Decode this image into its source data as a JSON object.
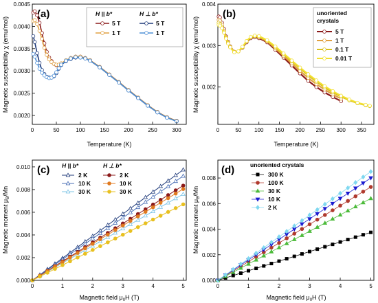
{
  "chart_data": [
    {
      "panel": "(a)",
      "type": "scatter",
      "xlabel": "Temperature (K)",
      "ylabel": "Magnetic susceptibility χ (emu/mol)",
      "xlim": [
        0,
        320
      ],
      "ylim": [
        0.0018,
        0.0045
      ],
      "xticks": [
        "0",
        "50",
        "100",
        "150",
        "200",
        "250",
        "300"
      ],
      "yticks": [
        "0.0020",
        "0.0025",
        "0.0030",
        "0.0035",
        "0.0040",
        "0.0045"
      ],
      "legend_headers": [
        "H || b*",
        "H ⊥ b*"
      ],
      "series": [
        {
          "name": "5 T",
          "color": "#8b1a1a",
          "x": [
            2,
            5,
            10,
            15,
            20,
            25,
            30,
            35,
            40,
            45,
            50,
            55,
            60,
            70,
            80,
            90,
            100,
            110,
            120,
            140,
            160,
            180,
            200,
            220,
            240,
            260,
            280,
            300
          ],
          "y": [
            0.00431,
            0.00434,
            0.00425,
            0.00408,
            0.00385,
            0.00362,
            0.00343,
            0.0033,
            0.00322,
            0.00316,
            0.00313,
            0.00313,
            0.00316,
            0.00323,
            0.00329,
            0.00332,
            0.00332,
            0.00329,
            0.00324,
            0.00309,
            0.00292,
            0.00275,
            0.00257,
            0.0024,
            0.00223,
            0.00208,
            0.00196,
            0.00188
          ]
        },
        {
          "name": "1 T",
          "color": "#e0a040",
          "x": [
            2,
            5,
            10,
            15,
            20,
            25,
            30,
            35,
            40,
            45,
            50,
            55,
            60,
            70,
            80,
            90,
            100,
            110,
            120,
            140,
            160,
            180,
            200,
            220,
            240,
            260,
            280,
            300
          ],
          "y": [
            0.00412,
            0.00414,
            0.00405,
            0.0039,
            0.00372,
            0.00352,
            0.00336,
            0.00326,
            0.0032,
            0.00316,
            0.00314,
            0.00314,
            0.00317,
            0.00324,
            0.00329,
            0.00332,
            0.00332,
            0.00329,
            0.00324,
            0.00309,
            0.00292,
            0.00275,
            0.00257,
            0.0024,
            0.00223,
            0.00208,
            0.00196,
            0.00188
          ]
        },
        {
          "name": "5 T",
          "color": "#1f3a7a",
          "x": [
            2,
            5,
            10,
            15,
            20,
            25,
            30,
            35,
            40,
            45,
            50,
            55,
            60,
            70,
            80,
            90,
            100,
            110,
            120,
            140,
            160,
            180,
            200,
            220,
            240,
            260,
            280,
            300
          ],
          "y": [
            0.00378,
            0.00365,
            0.0034,
            0.00318,
            0.00302,
            0.00293,
            0.00287,
            0.00285,
            0.00285,
            0.00288,
            0.00295,
            0.00305,
            0.00313,
            0.00322,
            0.00327,
            0.0033,
            0.0033,
            0.00328,
            0.00323,
            0.00308,
            0.00291,
            0.00274,
            0.00256,
            0.00239,
            0.00222,
            0.00207,
            0.00195,
            0.00187
          ]
        },
        {
          "name": "1 T",
          "color": "#4d8fd6",
          "x": [
            2,
            5,
            10,
            15,
            20,
            25,
            30,
            35,
            40,
            45,
            50,
            55,
            60,
            70,
            80,
            90,
            100,
            110,
            120,
            140,
            160,
            180,
            200,
            220,
            240,
            260,
            280,
            300
          ],
          "y": [
            0.00338,
            0.00332,
            0.00318,
            0.00305,
            0.00296,
            0.0029,
            0.00286,
            0.00284,
            0.00285,
            0.00289,
            0.00297,
            0.00306,
            0.00314,
            0.00323,
            0.00328,
            0.00331,
            0.0033,
            0.00328,
            0.00323,
            0.00308,
            0.00291,
            0.00274,
            0.00256,
            0.00239,
            0.00222,
            0.00207,
            0.00195,
            0.00187
          ]
        }
      ]
    },
    {
      "panel": "(b)",
      "type": "scatter",
      "xlabel": "Temperature (K)",
      "ylabel": "Magnetic susceptibility χ (emu/mol)",
      "xlim": [
        0,
        380
      ],
      "ylim": [
        0.0011,
        0.004
      ],
      "xticks": [
        "0",
        "50",
        "100",
        "150",
        "200",
        "250",
        "300",
        "350"
      ],
      "yticks": [
        "0.002",
        "0.003",
        "0.004"
      ],
      "legend_title": "unoriented crystals",
      "series": [
        {
          "name": "5 T",
          "color": "#8b1a1a",
          "x": [
            2,
            5,
            10,
            15,
            20,
            25,
            30,
            40,
            50,
            60,
            70,
            80,
            90,
            100,
            120,
            140,
            160,
            180,
            200,
            220,
            240,
            260,
            280,
            300
          ],
          "y": [
            0.0037,
            0.00368,
            0.00355,
            0.0034,
            0.00322,
            0.00309,
            0.00298,
            0.00285,
            0.00286,
            0.00295,
            0.00308,
            0.00318,
            0.0032,
            0.00318,
            0.00308,
            0.0029,
            0.00271,
            0.00252,
            0.00233,
            0.00215,
            0.002,
            0.00187,
            0.00176,
            0.00166
          ]
        },
        {
          "name": "1 T",
          "color": "#e0a040",
          "x": [
            2,
            5,
            10,
            15,
            20,
            25,
            30,
            40,
            50,
            60,
            70,
            80,
            90,
            100,
            120,
            140,
            160,
            180,
            200,
            220,
            240,
            260,
            280,
            300
          ],
          "y": [
            0.00362,
            0.0036,
            0.0035,
            0.00336,
            0.0032,
            0.00308,
            0.00297,
            0.00285,
            0.00286,
            0.00296,
            0.0031,
            0.0032,
            0.00323,
            0.0032,
            0.0031,
            0.00293,
            0.00275,
            0.00257,
            0.00239,
            0.00222,
            0.00207,
            0.00194,
            0.00182,
            0.00172
          ]
        },
        {
          "name": "0.1 T",
          "color": "#d8c020",
          "x": [
            2,
            5,
            10,
            15,
            20,
            25,
            30,
            40,
            50,
            60,
            70,
            80,
            90,
            100,
            120,
            140,
            160,
            180,
            200,
            220,
            240,
            260,
            280,
            300,
            320,
            340,
            360,
            370
          ],
          "y": [
            0.00355,
            0.00352,
            0.00345,
            0.00333,
            0.00318,
            0.00306,
            0.00296,
            0.00284,
            0.00286,
            0.00296,
            0.0031,
            0.0032,
            0.00323,
            0.00322,
            0.00312,
            0.00296,
            0.00279,
            0.00262,
            0.00245,
            0.00228,
            0.00213,
            0.00199,
            0.00187,
            0.00177,
            0.00168,
            0.00161,
            0.00156,
            0.00154
          ]
        },
        {
          "name": "0.01 T",
          "color": "#f2e030",
          "x": [
            2,
            5,
            10,
            15,
            20,
            25,
            30,
            40,
            50,
            60,
            70,
            80,
            90,
            100,
            120,
            140,
            160,
            180,
            200,
            220,
            240,
            260,
            280,
            300,
            320,
            340,
            360,
            370
          ],
          "y": [
            0.0035,
            0.00348,
            0.00342,
            0.00331,
            0.00317,
            0.00305,
            0.00296,
            0.00284,
            0.00286,
            0.00297,
            0.00311,
            0.00321,
            0.00324,
            0.00323,
            0.00313,
            0.00298,
            0.00281,
            0.00264,
            0.00247,
            0.00231,
            0.00216,
            0.00202,
            0.0019,
            0.00179,
            0.0017,
            0.00162,
            0.00157,
            0.00155
          ]
        }
      ]
    },
    {
      "panel": "(c)",
      "type": "line",
      "xlabel_main": "Magnetic field μ",
      "xlabel_sub": "0",
      "xlabel_tail": "H (T)",
      "ylabel_main": "Magnetic moment μ",
      "ylabel_sub": "B",
      "ylabel_tail": "/Mn",
      "xlim": [
        0,
        5.1
      ],
      "ylim": [
        0,
        0.0106
      ],
      "xticks": [
        "0",
        "1",
        "2",
        "3",
        "4",
        "5"
      ],
      "yticks": [
        "0.000",
        "0.002",
        "0.004",
        "0.006",
        "0.008",
        "0.010"
      ],
      "legend_headers": [
        "H || b*",
        "H ⊥ b*"
      ],
      "x": [
        0,
        0.25,
        0.5,
        0.75,
        1,
        1.25,
        1.5,
        1.75,
        2,
        2.25,
        2.5,
        2.75,
        3,
        3.25,
        3.5,
        3.75,
        4,
        4.25,
        4.5,
        4.75,
        5
      ],
      "series": [
        {
          "name": "2 K",
          "group": "par",
          "color": "#1f3a7a",
          "marker": "triangle",
          "slope": 0.00195
        },
        {
          "name": "10 K",
          "group": "par",
          "color": "#4a6fb5",
          "marker": "triangle",
          "slope": 0.00184
        },
        {
          "name": "30 K",
          "group": "par",
          "color": "#7ec4e6",
          "marker": "triangle",
          "slope": 0.00152
        },
        {
          "name": "2 K",
          "group": "perp",
          "color": "#8b1a1a",
          "marker": "circle",
          "slope": 0.00167
        },
        {
          "name": "10 K",
          "group": "perp",
          "color": "#e07a1f",
          "marker": "circle",
          "slope": 0.00161
        },
        {
          "name": "30 K",
          "group": "perp",
          "color": "#e8c020",
          "marker": "circle",
          "slope": 0.00134
        }
      ]
    },
    {
      "panel": "(d)",
      "type": "scatter",
      "xlabel_main": "Magnetic field μ",
      "xlabel_sub": "0",
      "xlabel_tail": "H (T)",
      "ylabel_main": "Magnetic moment μ",
      "ylabel_sub": "B",
      "ylabel_tail": "/Mn",
      "xlim": [
        0,
        5.1
      ],
      "ylim": [
        0,
        0.0094
      ],
      "xticks": [
        "0",
        "1",
        "2",
        "3",
        "4",
        "5"
      ],
      "yticks": [
        "0.000",
        "0.002",
        "0.004",
        "0.006",
        "0.008"
      ],
      "legend_title": "unoriented crystals",
      "x": [
        0,
        0.25,
        0.5,
        0.75,
        1,
        1.25,
        1.5,
        1.75,
        2,
        2.25,
        2.5,
        2.75,
        3,
        3.25,
        3.5,
        3.75,
        4,
        4.25,
        4.5,
        4.75,
        5
      ],
      "series": [
        {
          "name": "300 K",
          "color": "#000000",
          "marker": "square",
          "slope": 0.00075
        },
        {
          "name": "100 K",
          "color": "#b03a2e",
          "marker": "circle",
          "slope": 0.00146
        },
        {
          "name": "30 K",
          "color": "#4cbb3a",
          "marker": "triangle",
          "slope": 0.00128
        },
        {
          "name": "10 K",
          "color": "#1a1ad0",
          "marker": "triangledown",
          "slope": 0.0016
        },
        {
          "name": "2 K",
          "color": "#7fd8f0",
          "marker": "diamond",
          "slope": 0.0017
        }
      ]
    }
  ]
}
